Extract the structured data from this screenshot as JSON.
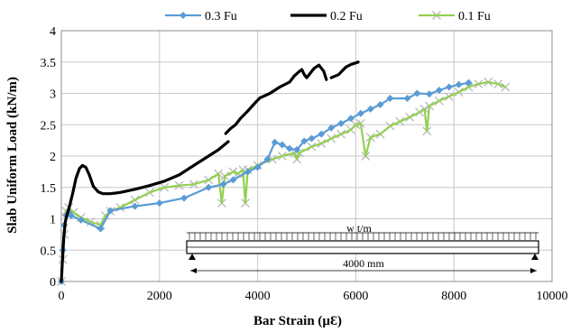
{
  "chart_data": {
    "type": "line",
    "title": "",
    "xlabel": "Bar Strain (µƐ)",
    "ylabel": "Slab Uniform Load (kN/m)",
    "xlim": [
      0,
      10000
    ],
    "ylim": [
      0,
      4
    ],
    "xticks": [
      0,
      2000,
      4000,
      6000,
      8000,
      10000
    ],
    "yticks": [
      0,
      0.5,
      1,
      1.5,
      2,
      2.5,
      3,
      3.5,
      4
    ],
    "xtick_labels": [
      "0",
      "2000",
      "4000",
      "6000",
      "8000",
      "10000"
    ],
    "ytick_labels": [
      "0",
      "0.5",
      "1",
      "1.5",
      "2",
      "2.5",
      "3",
      "3.5",
      "4"
    ],
    "grid": true,
    "legend_position": "top",
    "series": [
      {
        "name": "0.3 Fu",
        "color": "#5B9BD5",
        "marker": "diamond",
        "points": [
          [
            0,
            0
          ],
          [
            30,
            0.5
          ],
          [
            60,
            0.9
          ],
          [
            100,
            1.05
          ],
          [
            150,
            1.1
          ],
          [
            200,
            1.05
          ],
          [
            400,
            0.98
          ],
          [
            800,
            0.84
          ],
          [
            1000,
            1.13
          ],
          [
            1500,
            1.2
          ],
          [
            2000,
            1.25
          ],
          [
            2500,
            1.33
          ],
          [
            3000,
            1.5
          ],
          [
            3300,
            1.55
          ],
          [
            3500,
            1.62
          ],
          [
            3800,
            1.75
          ],
          [
            4000,
            1.82
          ],
          [
            4200,
            1.95
          ],
          [
            4350,
            2.22
          ],
          [
            4500,
            2.18
          ],
          [
            4650,
            2.12
          ],
          [
            4800,
            2.1
          ],
          [
            4950,
            2.24
          ],
          [
            5100,
            2.28
          ],
          [
            5300,
            2.35
          ],
          [
            5500,
            2.45
          ],
          [
            5700,
            2.52
          ],
          [
            5900,
            2.6
          ],
          [
            6100,
            2.68
          ],
          [
            6300,
            2.75
          ],
          [
            6500,
            2.82
          ],
          [
            6700,
            2.92
          ],
          [
            7050,
            2.92
          ],
          [
            7250,
            3.0
          ],
          [
            7500,
            2.99
          ],
          [
            7700,
            3.05
          ],
          [
            7900,
            3.1
          ],
          [
            8100,
            3.14
          ],
          [
            8300,
            3.17
          ]
        ]
      },
      {
        "name": "0.2 Fu",
        "color": "#000000",
        "marker": "none",
        "segments": [
          [
            [
              0,
              0
            ],
            [
              20,
              0.3
            ],
            [
              50,
              0.7
            ],
            [
              80,
              0.95
            ],
            [
              110,
              1.05
            ],
            [
              160,
              1.18
            ],
            [
              230,
              1.4
            ],
            [
              300,
              1.65
            ],
            [
              370,
              1.8
            ],
            [
              430,
              1.85
            ],
            [
              500,
              1.82
            ],
            [
              570,
              1.7
            ],
            [
              650,
              1.52
            ],
            [
              750,
              1.43
            ],
            [
              850,
              1.4
            ],
            [
              1000,
              1.4
            ],
            [
              1200,
              1.42
            ],
            [
              1500,
              1.47
            ],
            [
              1800,
              1.53
            ],
            [
              2100,
              1.6
            ],
            [
              2400,
              1.7
            ],
            [
              2700,
              1.85
            ],
            [
              3000,
              2.0
            ],
            [
              3200,
              2.1
            ],
            [
              3400,
              2.23
            ]
          ],
          [
            [
              3350,
              2.36
            ],
            [
              3450,
              2.44
            ],
            [
              3550,
              2.5
            ],
            [
              3650,
              2.6
            ],
            [
              3800,
              2.72
            ],
            [
              3950,
              2.85
            ],
            [
              4050,
              2.93
            ],
            [
              4250,
              3.0
            ],
            [
              4450,
              3.1
            ],
            [
              4650,
              3.18
            ],
            [
              4750,
              3.28
            ],
            [
              4850,
              3.35
            ],
            [
              4900,
              3.38
            ],
            [
              4950,
              3.3
            ],
            [
              5000,
              3.25
            ],
            [
              5050,
              3.3
            ],
            [
              5150,
              3.4
            ],
            [
              5250,
              3.45
            ],
            [
              5350,
              3.35
            ],
            [
              5400,
              3.22
            ]
          ],
          [
            [
              5500,
              3.25
            ],
            [
              5650,
              3.3
            ],
            [
              5800,
              3.42
            ],
            [
              5900,
              3.46
            ],
            [
              6050,
              3.5
            ]
          ]
        ]
      },
      {
        "name": "0.1 Fu",
        "color": "#92D050",
        "marker": "x",
        "points": [
          [
            0,
            0
          ],
          [
            30,
            0.35
          ],
          [
            60,
            0.75
          ],
          [
            100,
            1.12
          ],
          [
            150,
            1.18
          ],
          [
            250,
            1.1
          ],
          [
            400,
            1.02
          ],
          [
            600,
            0.95
          ],
          [
            800,
            0.9
          ],
          [
            900,
            1.05
          ],
          [
            1000,
            1.12
          ],
          [
            1200,
            1.18
          ],
          [
            1500,
            1.3
          ],
          [
            1800,
            1.42
          ],
          [
            2100,
            1.5
          ],
          [
            2400,
            1.53
          ],
          [
            2700,
            1.55
          ],
          [
            3000,
            1.62
          ],
          [
            3200,
            1.72
          ],
          [
            3270,
            1.25
          ],
          [
            3330,
            1.68
          ],
          [
            3500,
            1.75
          ],
          [
            3600,
            1.72
          ],
          [
            3700,
            1.78
          ],
          [
            3750,
            1.25
          ],
          [
            3800,
            1.78
          ],
          [
            4000,
            1.85
          ],
          [
            4300,
            1.95
          ],
          [
            4500,
            2.0
          ],
          [
            4750,
            2.05
          ],
          [
            4800,
            1.95
          ],
          [
            4850,
            2.05
          ],
          [
            5100,
            2.15
          ],
          [
            5300,
            2.2
          ],
          [
            5500,
            2.28
          ],
          [
            5700,
            2.35
          ],
          [
            5900,
            2.42
          ],
          [
            6000,
            2.5
          ],
          [
            6100,
            2.52
          ],
          [
            6200,
            2.0
          ],
          [
            6300,
            2.3
          ],
          [
            6500,
            2.35
          ],
          [
            6700,
            2.48
          ],
          [
            6900,
            2.55
          ],
          [
            7100,
            2.62
          ],
          [
            7300,
            2.7
          ],
          [
            7400,
            2.75
          ],
          [
            7450,
            2.4
          ],
          [
            7500,
            2.8
          ],
          [
            7700,
            2.88
          ],
          [
            7900,
            2.95
          ],
          [
            8100,
            3.02
          ],
          [
            8300,
            3.1
          ],
          [
            8500,
            3.15
          ],
          [
            8700,
            3.18
          ],
          [
            8900,
            3.15
          ],
          [
            9050,
            3.1
          ]
        ]
      }
    ],
    "inset": {
      "load_label": "w t/m",
      "span_label": "4000 mm"
    }
  }
}
